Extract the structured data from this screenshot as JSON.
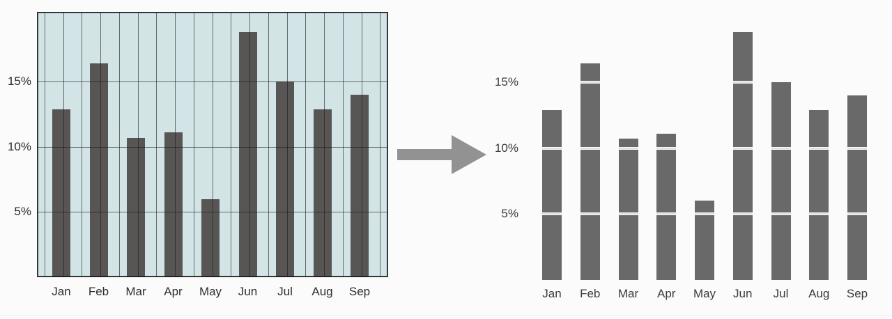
{
  "page": {
    "background": "#fbfbfb",
    "bottom_rule_color": "#f0f0f0"
  },
  "arrow": {
    "name": "before-to-after transform arrow",
    "direction": "right",
    "color": "#929292"
  },
  "chart_data": [
    {
      "id": "before",
      "type": "bar",
      "title": "",
      "xlabel": "",
      "ylabel": "",
      "categories": [
        "Jan",
        "Feb",
        "Mar",
        "Apr",
        "May",
        "Jun",
        "Jul",
        "Aug",
        "Sep"
      ],
      "values": [
        12.9,
        16.4,
        10.7,
        11.1,
        6.0,
        18.8,
        15.0,
        12.9,
        14.0
      ],
      "unit": "%",
      "yticks": [
        {
          "value": 5,
          "label": "5%"
        },
        {
          "value": 10,
          "label": "10%"
        },
        {
          "value": 15,
          "label": "15%"
        }
      ],
      "ylim": [
        0,
        20.35
      ],
      "legend": null,
      "grid": {
        "vertical": true,
        "horizontal": true,
        "drawn_over_bars": true,
        "framed": true
      },
      "colors": {
        "plot_bg": "#d2e4e5",
        "bar": "#585555",
        "grid_line": "rgba(25,25,25,0.6)",
        "frame": "rgba(25,25,25,0.85)",
        "text": "#2d2d2d"
      }
    },
    {
      "id": "after",
      "type": "bar",
      "title": "",
      "xlabel": "",
      "ylabel": "",
      "categories": [
        "Jan",
        "Feb",
        "Mar",
        "Apr",
        "May",
        "Jun",
        "Jul",
        "Aug",
        "Sep"
      ],
      "values": [
        12.9,
        16.4,
        10.7,
        11.1,
        6.0,
        18.8,
        15.0,
        12.9,
        14.0
      ],
      "unit": "%",
      "yticks": [
        {
          "value": 5,
          "label": "5%"
        },
        {
          "value": 10,
          "label": "10%"
        },
        {
          "value": 15,
          "label": "15%"
        }
      ],
      "ylim": [
        0,
        20.1
      ],
      "legend": null,
      "grid": {
        "vertical": false,
        "horizontal": "white-lines-through-bars",
        "framed": false
      },
      "colors": {
        "plot_bg": "transparent",
        "bar": "#6a6969",
        "gap": "#fafafa",
        "gap_line": "#c6c6c6",
        "text": "#3a3a3a"
      }
    }
  ]
}
